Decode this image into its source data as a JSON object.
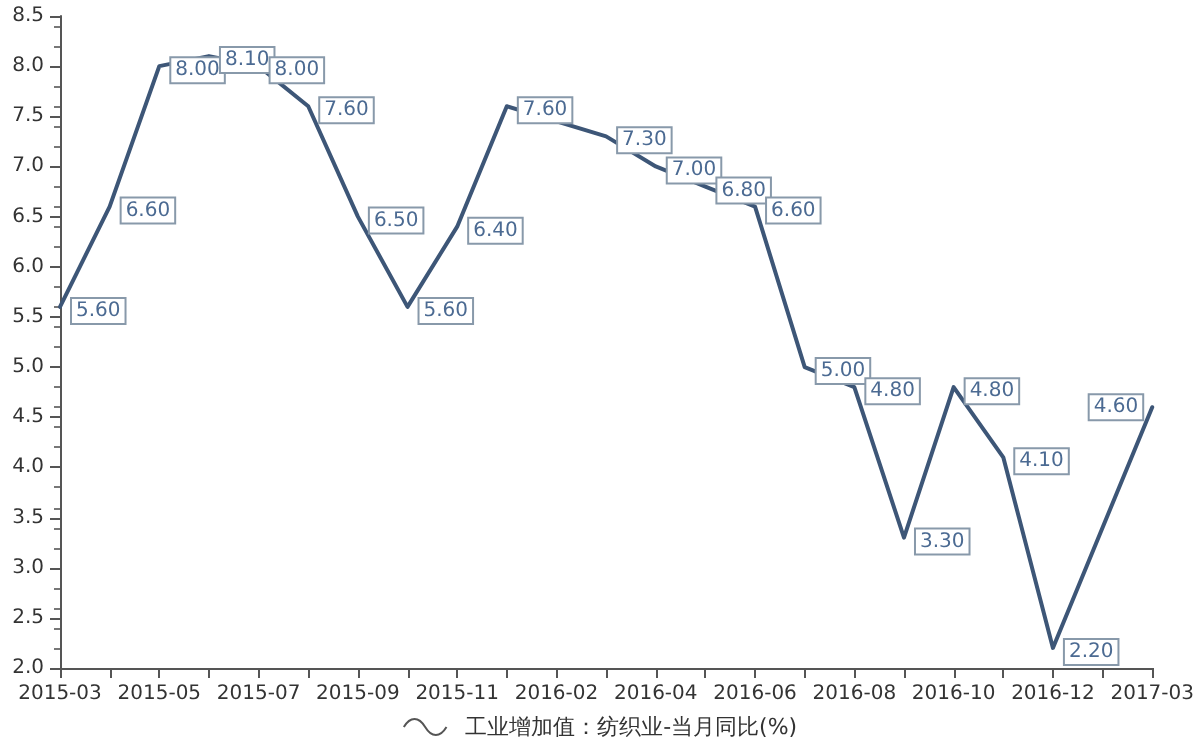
{
  "chart_data": {
    "type": "line",
    "categories": [
      "2015-03",
      null,
      "2015-05",
      null,
      "2015-07",
      null,
      "2015-09",
      null,
      "2015-11",
      null,
      "2016-02",
      null,
      "2016-04",
      null,
      "2016-06",
      null,
      "2016-08",
      null,
      "2016-10",
      null,
      "2016-12",
      null,
      "2017-03"
    ],
    "series": [
      {
        "name": "工业增加值：纺织业-当月同比(%)",
        "color": "#3d5677",
        "values": [
          5.6,
          6.6,
          8.0,
          8.1,
          8.0,
          7.6,
          6.5,
          5.6,
          6.4,
          7.6,
          null,
          7.3,
          7.0,
          6.8,
          6.6,
          5.0,
          4.8,
          3.3,
          4.8,
          4.1,
          2.2,
          null,
          4.6
        ],
        "value_labels": [
          "5.60",
          "6.60",
          "8.00",
          "8.10",
          "8.00",
          "7.60",
          "6.50",
          "5.60",
          "6.40",
          "7.60",
          null,
          "7.30",
          "7.00",
          "6.80",
          "6.60",
          "5.00",
          "4.80",
          "3.30",
          "4.80",
          "4.10",
          "2.20",
          null,
          "4.60"
        ]
      }
    ],
    "ylim": [
      2.0,
      8.5
    ],
    "yticks": [
      {
        "value": 2.0,
        "label": "2.0"
      },
      {
        "value": 2.5,
        "label": "2.5"
      },
      {
        "value": 3.0,
        "label": "3.0"
      },
      {
        "value": 3.5,
        "label": "3.5"
      },
      {
        "value": 4.0,
        "label": "4.0"
      },
      {
        "value": 4.5,
        "label": "4.5"
      },
      {
        "value": 5.0,
        "label": "5.0"
      },
      {
        "value": 5.5,
        "label": "5.5"
      },
      {
        "value": 6.0,
        "label": "6.0"
      },
      {
        "value": 6.5,
        "label": "6.5"
      },
      {
        "value": 7.0,
        "label": "7.0"
      },
      {
        "value": 7.5,
        "label": "7.5"
      },
      {
        "value": 8.0,
        "label": "8.0"
      },
      {
        "value": 8.5,
        "label": "8.5"
      }
    ],
    "grid": false,
    "legend": "bottom",
    "marker": "none",
    "line_style": "solid"
  }
}
